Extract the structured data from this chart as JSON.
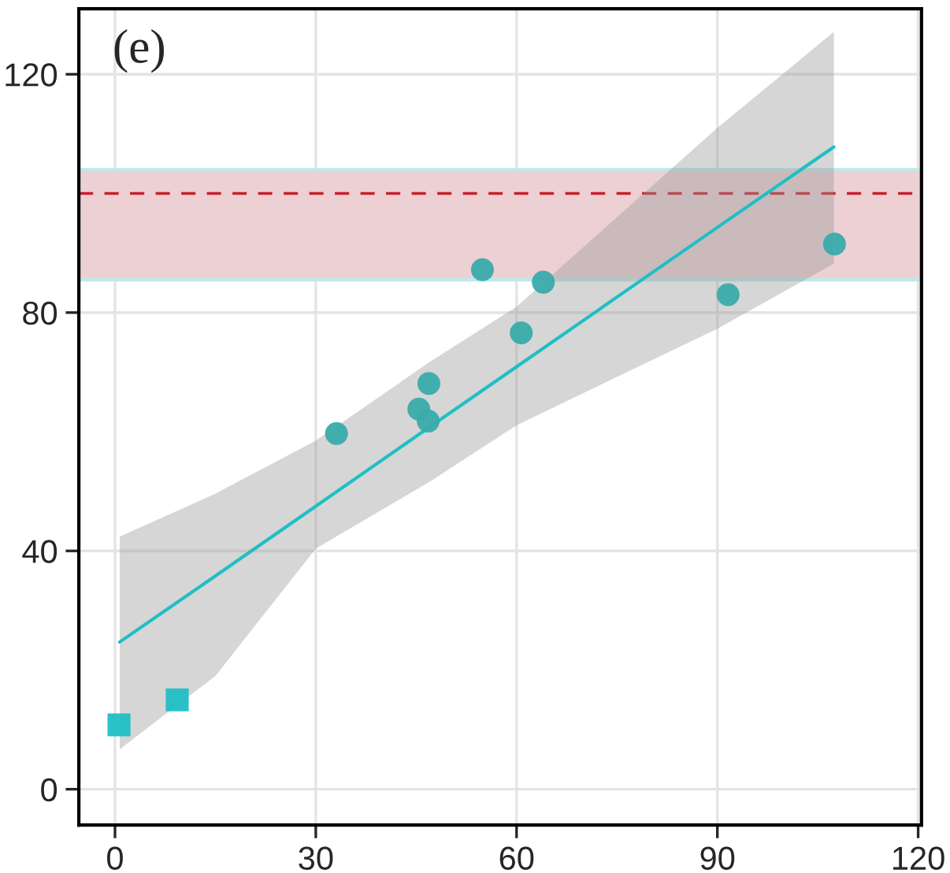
{
  "chart_data": {
    "type": "scatter",
    "annotations": [
      "(e)"
    ],
    "xlim": [
      -5.4,
      120.5
    ],
    "ylim": [
      -6,
      131
    ],
    "xticks": [
      0,
      30,
      60,
      90,
      120
    ],
    "yticks": [
      0,
      40,
      80,
      120
    ],
    "grid": true,
    "legend": false,
    "bands": [
      {
        "axis": "y",
        "from": 85.5,
        "to": 104,
        "color": "#ecd0d4"
      }
    ],
    "ref_lines": [
      {
        "axis": "y",
        "value": 100,
        "color": "#c8202a",
        "line_style": "dashed"
      }
    ],
    "series": [
      {
        "marker": "circle",
        "color": "#3aabab",
        "x": [
          33.1,
          45.4,
          46.8,
          46.9,
          54.9,
          60.7,
          64.0,
          91.6,
          107.5
        ],
        "values": [
          59.7,
          63.8,
          61.8,
          68.1,
          87.2,
          76.6,
          85.1,
          83.0,
          91.5
        ]
      },
      {
        "marker": "square",
        "color": "#1fbfc4",
        "x": [
          0.6,
          9.3
        ],
        "values": [
          10.8,
          15.0
        ]
      },
      {
        "type": "line",
        "marker": "none",
        "line_style": "solid",
        "color": "#1fbfc4",
        "x": [
          0.7,
          15,
          30,
          47,
          60,
          90,
          107.4
        ],
        "values": [
          24.7,
          35.8,
          47.5,
          60.8,
          70.9,
          94.3,
          107.8
        ],
        "lower": [
          6.7,
          19,
          40.4,
          51.6,
          61.1,
          77.3,
          88.2
        ],
        "upper": [
          42.4,
          49.6,
          58.5,
          71.7,
          81,
          111,
          127.1
        ]
      }
    ]
  }
}
